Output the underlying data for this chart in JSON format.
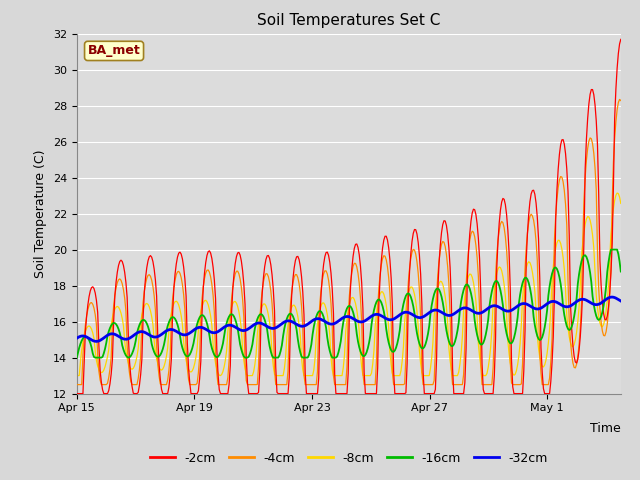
{
  "title": "Soil Temperatures Set C",
  "xlabel": "Time",
  "ylabel": "Soil Temperature (C)",
  "ylim": [
    12,
    32
  ],
  "yticks": [
    12,
    14,
    16,
    18,
    20,
    22,
    24,
    26,
    28,
    30,
    32
  ],
  "annotation_text": "BA_met",
  "annotation_color": "#8B0000",
  "annotation_bg": "#FFFFCC",
  "bg_color": "#DCDCDC",
  "line_colors": {
    "-2cm": "#FF0000",
    "-4cm": "#FF8C00",
    "-8cm": "#FFD700",
    "-16cm": "#00BB00",
    "-32cm": "#0000EE"
  },
  "x_tick_labels": [
    "Apr 15",
    "Apr 19",
    "Apr 23",
    "Apr 27",
    "May 1"
  ],
  "x_tick_positions": [
    0,
    4,
    8,
    12,
    16
  ]
}
